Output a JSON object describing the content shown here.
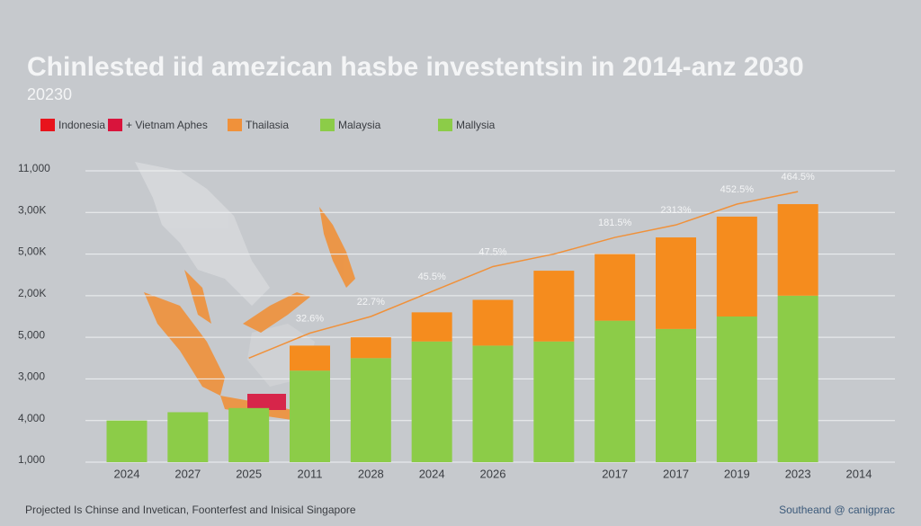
{
  "chart_data": {
    "type": "stacked-bar-line",
    "title": "Chinlested iid amezican hasbe investentsin in 2014-anz 2030",
    "subtitle": "20230",
    "legend": [
      {
        "label": "Indonesia",
        "color": "#e8141c"
      },
      {
        "label": "+ Vietnam Aphes",
        "color": "#d9143c"
      },
      {
        "label": "Thailasia",
        "color": "#f0913a"
      },
      {
        "label": "Malaysia",
        "color": "#8ccc48"
      },
      {
        "label": "Mallysia",
        "color": "#8ccc48"
      }
    ],
    "categories": [
      "2024",
      "2027",
      "2025",
      "2011",
      "2028",
      "2024",
      "2026",
      null,
      "2017",
      "2017",
      "2019",
      "2023",
      "2014"
    ],
    "series": [
      {
        "color": "#8ccc48",
        "values": [
          1.0,
          1.2,
          1.3,
          2.2,
          2.5,
          2.9,
          2.8,
          2.9,
          3.4,
          3.2,
          3.5,
          4.0,
          null
        ]
      },
      {
        "color": "#f58c1e",
        "values": [
          0,
          0,
          0,
          0.6,
          0.5,
          0.7,
          1.1,
          1.7,
          1.6,
          2.2,
          2.4,
          2.2,
          null
        ]
      }
    ],
    "line": {
      "color": "#f0913a",
      "values": [
        null,
        null,
        2.5,
        3.1,
        3.5,
        4.1,
        4.7,
        5.0,
        5.4,
        5.7,
        6.2,
        6.5,
        null
      ]
    },
    "annotations": [
      "32.6%",
      "22.7%",
      "45.5%",
      "47.5%",
      "181.5%",
      "2313%",
      "452.5%",
      "464.5%"
    ],
    "ylim": [
      0,
      7
    ],
    "yticks": [
      {
        "value": 0,
        "label": "1,000"
      },
      {
        "value": 1,
        "label": "4,000"
      },
      {
        "value": 2,
        "label": "3,000"
      },
      {
        "value": 3,
        "label": "5,000"
      },
      {
        "value": 4,
        "label": "2,00K"
      },
      {
        "value": 5,
        "label": "5,00K"
      },
      {
        "value": 6,
        "label": "3,00K"
      },
      {
        "value": 7,
        "label": "11,000"
      }
    ],
    "grid": true,
    "footnote": "Projected Is Chinse and Invetican, Foonterfest and Inisical Singapore",
    "source": "Southeand @ canigprac"
  }
}
